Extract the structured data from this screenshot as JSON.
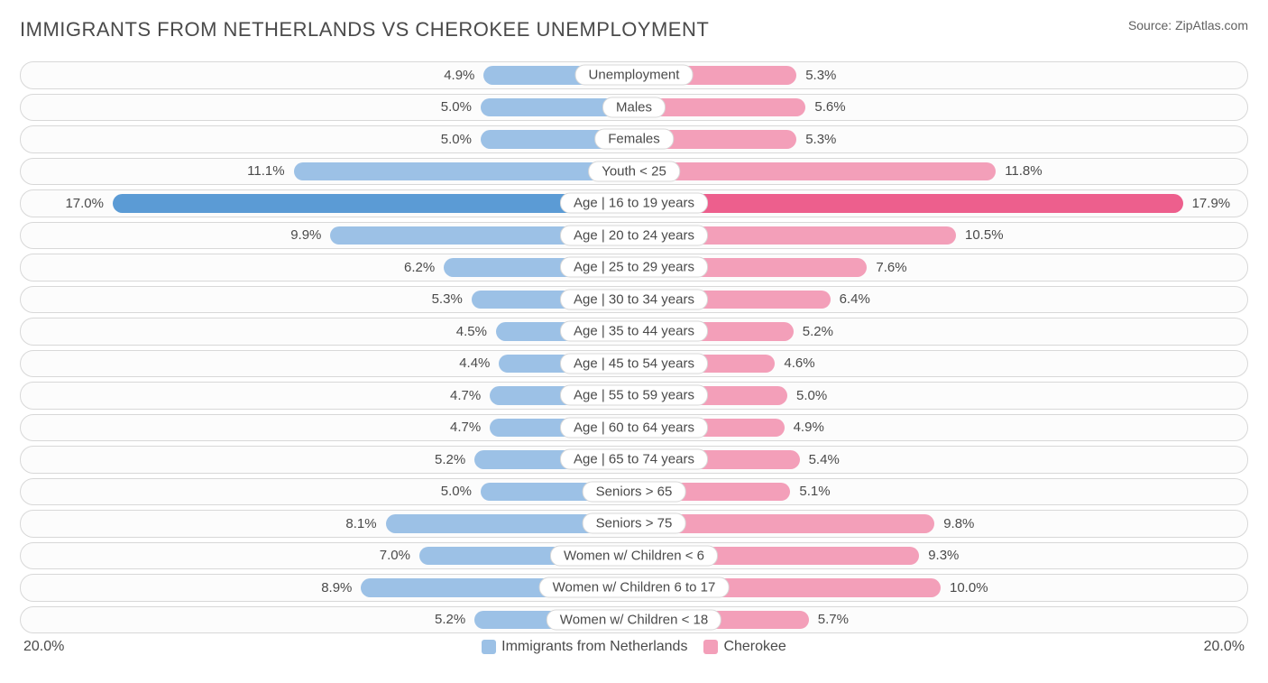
{
  "title": "IMMIGRANTS FROM NETHERLANDS VS CHEROKEE UNEMPLOYMENT",
  "source": "Source: ZipAtlas.com",
  "axis_max": 20.0,
  "axis_label_left": "20.0%",
  "axis_label_right": "20.0%",
  "colors": {
    "left_base": "#9cc1e6",
    "right_base": "#f39fb9",
    "left_hi": "#5b9bd5",
    "right_hi": "#ed5f8d",
    "row_border": "#d8d8d8",
    "text": "#4a4a4a",
    "bg": "#ffffff"
  },
  "legend": {
    "left": "Immigrants from Netherlands",
    "right": "Cherokee"
  },
  "rows": [
    {
      "label": "Unemployment",
      "l": 4.9,
      "r": 5.3,
      "hl": false
    },
    {
      "label": "Males",
      "l": 5.0,
      "r": 5.6,
      "hl": false
    },
    {
      "label": "Females",
      "l": 5.0,
      "r": 5.3,
      "hl": false
    },
    {
      "label": "Youth < 25",
      "l": 11.1,
      "r": 11.8,
      "hl": false
    },
    {
      "label": "Age | 16 to 19 years",
      "l": 17.0,
      "r": 17.9,
      "hl": true
    },
    {
      "label": "Age | 20 to 24 years",
      "l": 9.9,
      "r": 10.5,
      "hl": false
    },
    {
      "label": "Age | 25 to 29 years",
      "l": 6.2,
      "r": 7.6,
      "hl": false
    },
    {
      "label": "Age | 30 to 34 years",
      "l": 5.3,
      "r": 6.4,
      "hl": false
    },
    {
      "label": "Age | 35 to 44 years",
      "l": 4.5,
      "r": 5.2,
      "hl": false
    },
    {
      "label": "Age | 45 to 54 years",
      "l": 4.4,
      "r": 4.6,
      "hl": false
    },
    {
      "label": "Age | 55 to 59 years",
      "l": 4.7,
      "r": 5.0,
      "hl": false
    },
    {
      "label": "Age | 60 to 64 years",
      "l": 4.7,
      "r": 4.9,
      "hl": false
    },
    {
      "label": "Age | 65 to 74 years",
      "l": 5.2,
      "r": 5.4,
      "hl": false
    },
    {
      "label": "Seniors > 65",
      "l": 5.0,
      "r": 5.1,
      "hl": false
    },
    {
      "label": "Seniors > 75",
      "l": 8.1,
      "r": 9.8,
      "hl": false
    },
    {
      "label": "Women w/ Children < 6",
      "l": 7.0,
      "r": 9.3,
      "hl": false
    },
    {
      "label": "Women w/ Children 6 to 17",
      "l": 8.9,
      "r": 10.0,
      "hl": false
    },
    {
      "label": "Women w/ Children < 18",
      "l": 5.2,
      "r": 5.7,
      "hl": false
    }
  ]
}
